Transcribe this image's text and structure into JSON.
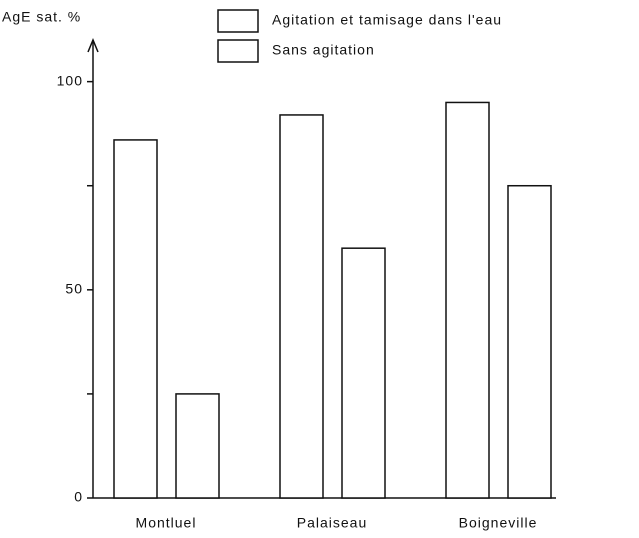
{
  "chart_data": {
    "type": "bar",
    "y_label": "AgE sat. %",
    "categories": [
      "Montluel",
      "Palaiseau",
      "Boigneville"
    ],
    "series": [
      {
        "name": "Agitation et tamisage dans l'eau",
        "color": "#ffffff",
        "values": [
          86,
          92,
          95
        ]
      },
      {
        "name": "Sans agitation",
        "color": "#ffffff",
        "values": [
          25,
          60,
          75
        ]
      }
    ],
    "ylim": [
      0,
      110
    ],
    "yticks": [
      0,
      50,
      100
    ],
    "yminor_ticks": [
      25,
      75
    ],
    "grid": false,
    "legend": "top"
  }
}
